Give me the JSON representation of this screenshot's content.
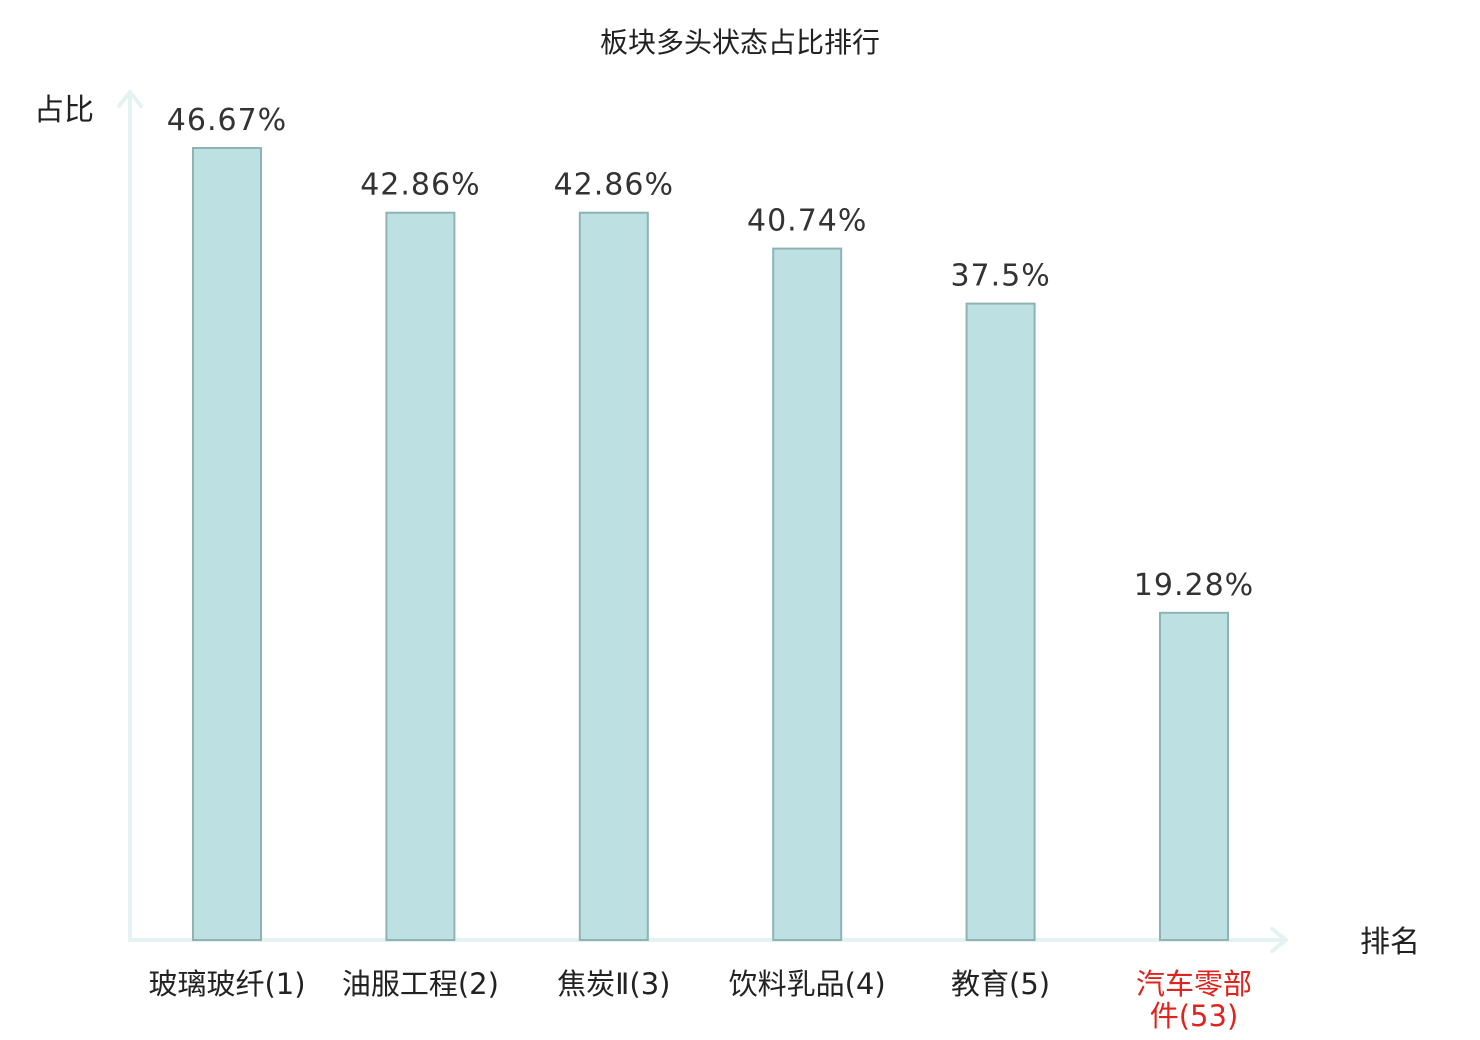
{
  "chart_data": {
    "type": "bar",
    "title": "板块多头状态占比排行",
    "xlabel": "排名",
    "ylabel": "占比",
    "categories": [
      "玻璃玻纤(1)",
      "油服工程(2)",
      "焦炭Ⅱ(3)",
      "饮料乳品(4)",
      "教育(5)",
      "汽车零部件(53)"
    ],
    "category_lines": [
      [
        "玻璃玻纤(1)"
      ],
      [
        "油服工程(2)"
      ],
      [
        "焦炭Ⅱ(3)"
      ],
      [
        "饮料乳品(4)"
      ],
      [
        "教育(5)"
      ],
      [
        "汽车零部",
        "件(53)"
      ]
    ],
    "values": [
      46.67,
      42.86,
      42.86,
      40.74,
      37.5,
      19.28
    ],
    "value_labels": [
      "46.67%",
      "42.86%",
      "42.86%",
      "40.74%",
      "37.5%",
      "19.28%"
    ],
    "highlight_index": 5,
    "ylim": [
      0,
      50
    ],
    "grid": false,
    "legend": "none"
  },
  "colors": {
    "bar_fill": "#bde0e2",
    "bar_stroke": "#8fb3b5",
    "axis": "#e3f3f1",
    "text": "#222222",
    "highlight": "#e0231c"
  }
}
